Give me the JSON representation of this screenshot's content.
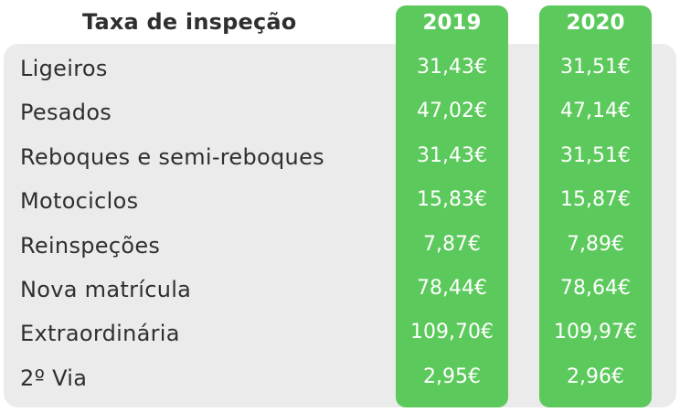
{
  "chart_data": {
    "type": "table",
    "title": "Taxa de inspeção",
    "columns": [
      "2019",
      "2020"
    ],
    "categories": [
      "Ligeiros",
      "Pesados",
      "Reboques e semi-reboques",
      "Motociclos",
      "Reinspeções",
      "Nova matrícula",
      "Extraordinária",
      "2º Via"
    ],
    "series": [
      {
        "name": "2019",
        "values": [
          "31,43€",
          "47,02€",
          "31,43€",
          "15,83€",
          "7,87€",
          "78,44€",
          "109,70€",
          "2,95€"
        ]
      },
      {
        "name": "2020",
        "values": [
          "31,51€",
          "47,14€",
          "31,51€",
          "15,87€",
          "7,89€",
          "78,64€",
          "109,97€",
          "2,96€"
        ]
      }
    ],
    "colors": {
      "highlight": "#5cc95c",
      "panel": "#ebebeb",
      "text": "#2f2f2f"
    }
  }
}
